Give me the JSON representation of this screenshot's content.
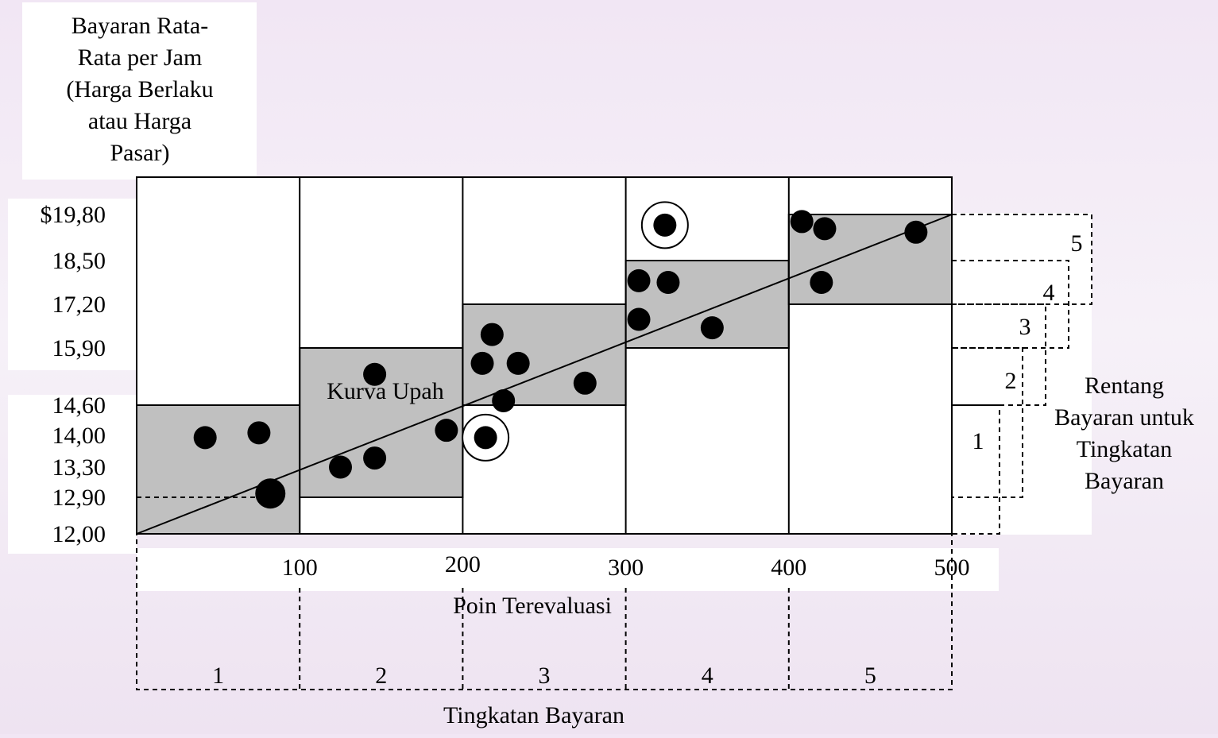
{
  "chart_data": {
    "type": "scatter",
    "title": "",
    "ylabel": "Bayaran Rata-Rata per Jam (Harga Berlaku atau Harga Pasar)",
    "ylabel_lines": [
      "Bayaran Rata-",
      "Rata per Jam",
      "(Harga Berlaku",
      "atau Harga",
      "Pasar)"
    ],
    "xlabel": "Poin Terevaluasi",
    "xlim": [
      0,
      500
    ],
    "x_ticks": [
      "100",
      "200",
      "300",
      "400",
      "500"
    ],
    "y_ticks": [
      {
        "value": 19.8,
        "label": "$19,80"
      },
      {
        "value": 18.5,
        "label": "18,50"
      },
      {
        "value": 17.2,
        "label": "17,20"
      },
      {
        "value": 15.9,
        "label": "15,90"
      },
      {
        "value": 14.6,
        "label": "14,60"
      },
      {
        "value": 14.0,
        "label": "14,00"
      },
      {
        "value": 13.3,
        "label": "13,30"
      },
      {
        "value": 12.9,
        "label": "12,90"
      },
      {
        "value": 12.0,
        "label": "12,00"
      }
    ],
    "wage_curve": {
      "label": "Kurva Upah",
      "from": [
        0,
        12.0
      ],
      "to": [
        500,
        19.8
      ]
    },
    "pay_grades": {
      "label": "Tingkatan Bayaran",
      "grades": [
        {
          "label": "1",
          "x_range": [
            0,
            100
          ],
          "rate_range": [
            12.0,
            14.6
          ]
        },
        {
          "label": "2",
          "x_range": [
            100,
            200
          ],
          "rate_range": [
            12.9,
            15.9
          ]
        },
        {
          "label": "3",
          "x_range": [
            200,
            300
          ],
          "rate_range": [
            14.6,
            17.2
          ]
        },
        {
          "label": "4",
          "x_range": [
            300,
            400
          ],
          "rate_range": [
            15.9,
            18.5
          ]
        },
        {
          "label": "5",
          "x_range": [
            400,
            500
          ],
          "rate_range": [
            17.2,
            19.8
          ]
        }
      ]
    },
    "rate_ranges_label": "Rentang Bayaran untuk Tingkatan Bayaran",
    "rate_ranges_lines": [
      "Rentang",
      "Bayaran untuk",
      "Tingkatan",
      "Bayaran"
    ],
    "points": [
      {
        "x": 42,
        "y": 13.95
      },
      {
        "x": 75,
        "y": 14.05
      },
      {
        "x": 82,
        "y": 12.95,
        "large": true
      },
      {
        "x": 125,
        "y": 13.3
      },
      {
        "x": 146,
        "y": 13.5
      },
      {
        "x": 146,
        "y": 15.3
      },
      {
        "x": 190,
        "y": 14.1
      },
      {
        "x": 212,
        "y": 15.55
      },
      {
        "x": 218,
        "y": 16.3
      },
      {
        "x": 225,
        "y": 14.7
      },
      {
        "x": 234,
        "y": 15.55
      },
      {
        "x": 275,
        "y": 15.1
      },
      {
        "x": 214,
        "y": 13.95,
        "circled": true
      },
      {
        "x": 308,
        "y": 16.75
      },
      {
        "x": 308,
        "y": 17.9
      },
      {
        "x": 326,
        "y": 17.85
      },
      {
        "x": 353,
        "y": 16.5
      },
      {
        "x": 324,
        "y": 19.5,
        "circled": true
      },
      {
        "x": 408,
        "y": 19.6
      },
      {
        "x": 422,
        "y": 19.4
      },
      {
        "x": 420,
        "y": 17.85
      },
      {
        "x": 478,
        "y": 19.3
      }
    ]
  }
}
